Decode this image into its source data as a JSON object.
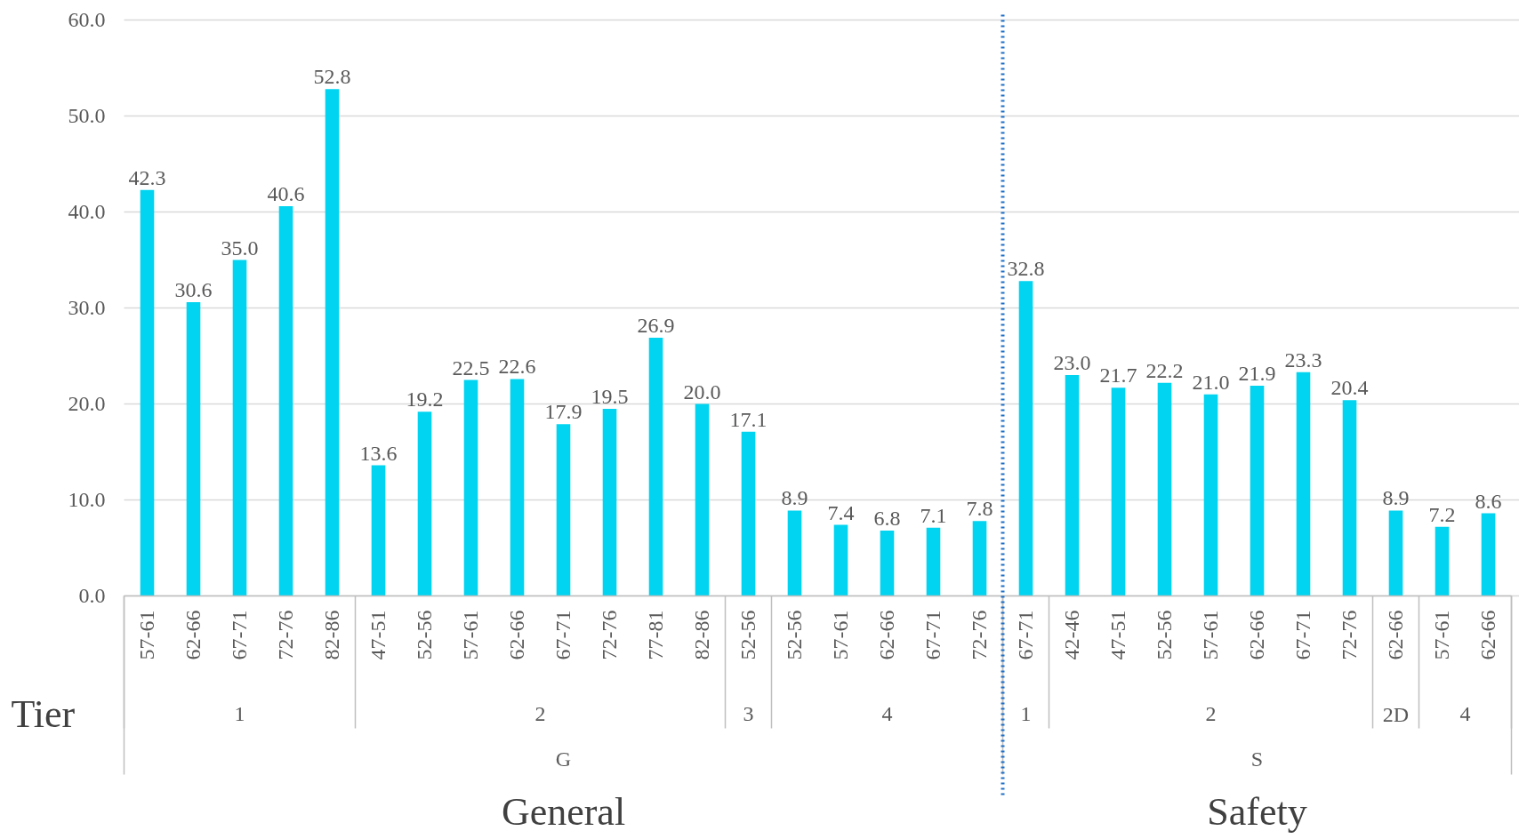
{
  "chart_data": {
    "type": "bar",
    "categories": [
      [
        "G",
        "1",
        "57-61"
      ],
      [
        null,
        null,
        "62-66"
      ],
      [
        null,
        null,
        "67-71"
      ],
      [
        null,
        null,
        "72-76"
      ],
      [
        null,
        null,
        "82-86"
      ],
      [
        null,
        "2",
        "47-51"
      ],
      [
        null,
        null,
        "52-56"
      ],
      [
        null,
        null,
        "57-61"
      ],
      [
        null,
        null,
        "62-66"
      ],
      [
        null,
        null,
        "67-71"
      ],
      [
        null,
        null,
        "72-76"
      ],
      [
        null,
        null,
        "77-81"
      ],
      [
        null,
        null,
        "82-86"
      ],
      [
        null,
        "3",
        "52-56"
      ],
      [
        null,
        "4",
        "52-56"
      ],
      [
        null,
        null,
        "57-61"
      ],
      [
        null,
        null,
        "62-66"
      ],
      [
        null,
        null,
        "67-71"
      ],
      [
        null,
        null,
        "72-76"
      ],
      [
        "S",
        "1",
        "67-71"
      ],
      [
        null,
        "2",
        "42-46"
      ],
      [
        null,
        null,
        "47-51"
      ],
      [
        null,
        null,
        "52-56"
      ],
      [
        null,
        null,
        "57-61"
      ],
      [
        null,
        null,
        "62-66"
      ],
      [
        null,
        null,
        "67-71"
      ],
      [
        null,
        null,
        "72-76"
      ],
      [
        null,
        "2D",
        "62-66"
      ],
      [
        null,
        "4",
        "57-61"
      ],
      [
        null,
        null,
        "62-66"
      ]
    ],
    "values": [
      42.3,
      30.6,
      35.0,
      40.6,
      52.8,
      13.6,
      19.2,
      22.5,
      22.6,
      17.9,
      19.5,
      26.9,
      20.0,
      17.1,
      8.9,
      7.4,
      6.8,
      7.1,
      7.8,
      32.8,
      23.0,
      21.7,
      22.2,
      21.0,
      21.9,
      23.3,
      20.4,
      8.9,
      7.2,
      8.6
    ],
    "value_labels": [
      "42.3",
      "30.6",
      "35.0",
      "40.6",
      "52.8",
      "13.6",
      "19.2",
      "22.5",
      "22.6",
      "17.9",
      "19.5",
      "26.9",
      "20.0",
      "17.1",
      "8.9",
      "7.4",
      "6.8",
      "7.1",
      "7.8",
      "32.8",
      "23.0",
      "21.7",
      "22.2",
      "21.0",
      "21.9",
      "23.3",
      "20.4",
      "8.9",
      "7.2",
      "8.6"
    ],
    "color": "#00d4f0",
    "ylim": [
      0,
      60
    ],
    "yticks": [
      {
        "value": 0,
        "label": "0.0"
      },
      {
        "value": 10,
        "label": "10.0"
      },
      {
        "value": 20,
        "label": "20.0"
      },
      {
        "value": 30,
        "label": "30.0"
      },
      {
        "value": 40,
        "label": "40.0"
      },
      {
        "value": 50,
        "label": "50.0"
      },
      {
        "value": 60,
        "label": "60.0"
      }
    ],
    "grid": "y",
    "annotations": [
      "Tier",
      "General",
      "Safety"
    ]
  }
}
